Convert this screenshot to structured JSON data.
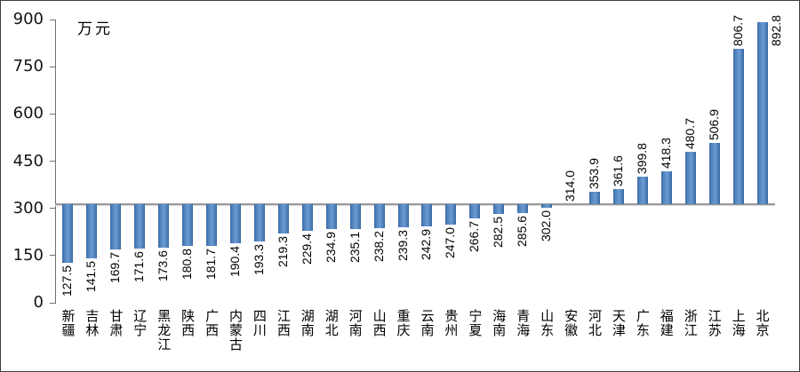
{
  "chart_data": {
    "type": "bar",
    "title": "",
    "unit_label": "万元",
    "xlabel": "",
    "ylabel": "万元",
    "ylim": [
      0,
      900
    ],
    "y_ticks": [
      0,
      150,
      300,
      450,
      600,
      750,
      900
    ],
    "axis_crosses_at": 314.0,
    "grid": false,
    "legend": false,
    "categories": [
      "新疆",
      "吉林",
      "甘肃",
      "辽宁",
      "黑龙江",
      "陕西",
      "广西",
      "内蒙古",
      "四川",
      "江西",
      "湖南",
      "湖北",
      "河南",
      "山西",
      "重庆",
      "云南",
      "贵州",
      "宁夏",
      "海南",
      "青海",
      "山东",
      "安徽",
      "河北",
      "天津",
      "广东",
      "福建",
      "浙江",
      "江苏",
      "上海",
      "北京"
    ],
    "values": [
      127.5,
      141.5,
      169.7,
      171.6,
      173.6,
      180.8,
      181.7,
      190.4,
      193.3,
      219.3,
      229.4,
      234.9,
      235.1,
      238.2,
      239.3,
      242.9,
      247.0,
      266.7,
      282.5,
      285.6,
      302.0,
      314.0,
      353.9,
      361.6,
      399.8,
      418.3,
      480.7,
      506.9,
      806.7,
      892.8
    ],
    "colors": {
      "bar": "#4f81bd",
      "bar_edge": "#39669c",
      "axis": "#6e6e6e",
      "baseline_line": "#9b9b9b",
      "text": "#000000",
      "background": "#ffffff"
    }
  }
}
